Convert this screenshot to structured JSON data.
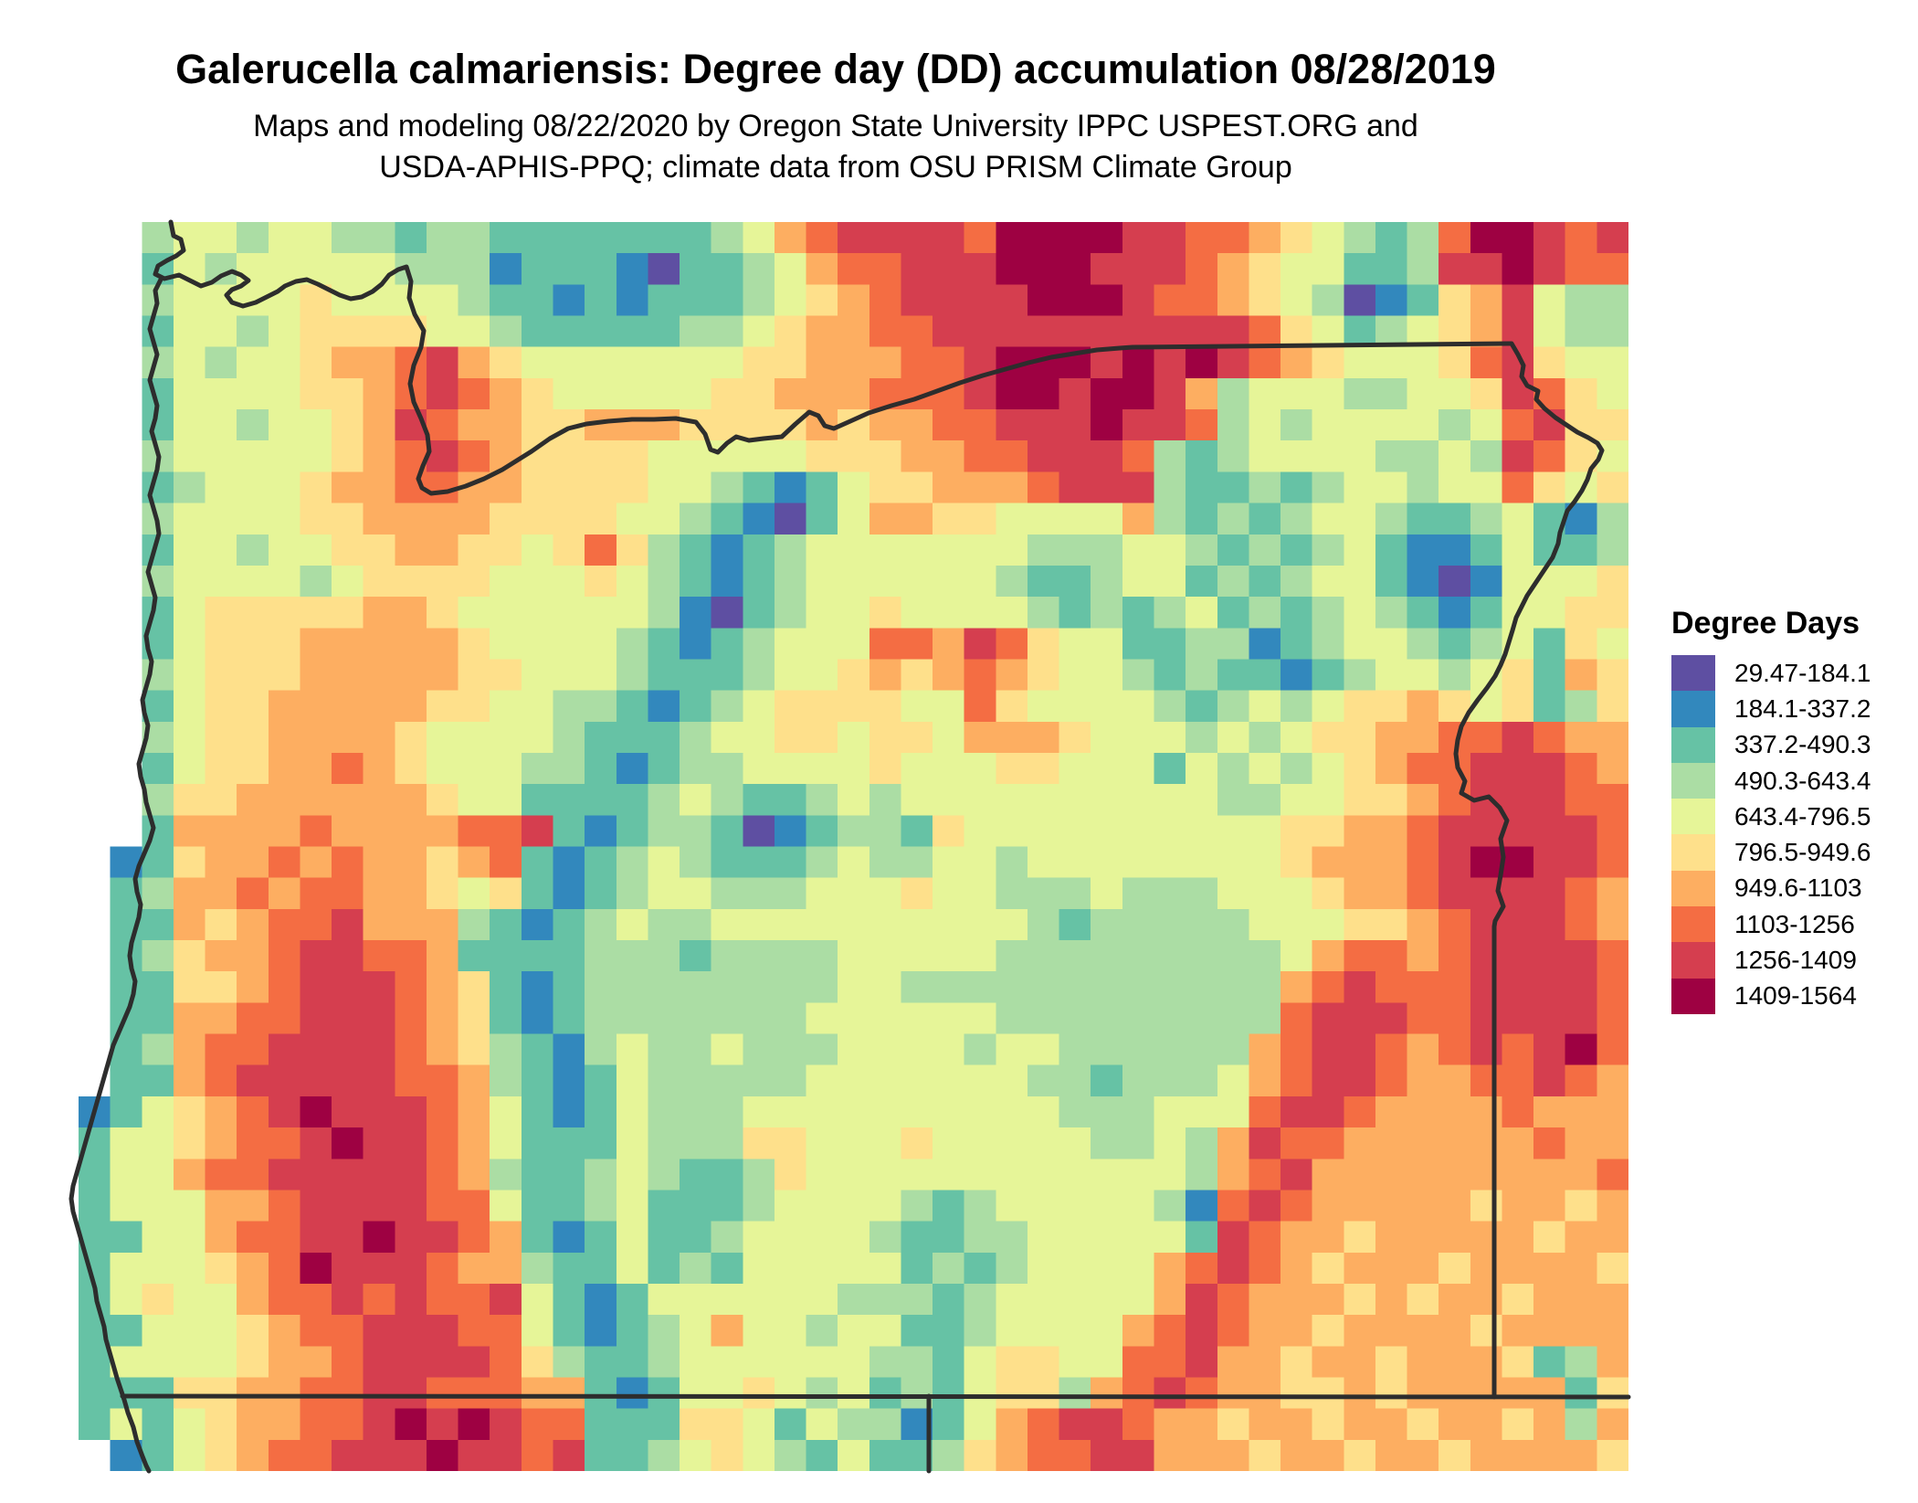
{
  "title": "Galerucella calmariensis: Degree day (DD) accumulation 08/28/2019",
  "subtitle": {
    "line1": "Maps and modeling 08/22/2020 by Oregon State University IPPC USPEST.ORG and",
    "line2": "USDA-APHIS-PPQ; climate data from OSU PRISM Climate Group"
  },
  "legend": {
    "title": "Degree Days",
    "entries": [
      {
        "label": "29.47-184.1",
        "color": "#5e4fa2"
      },
      {
        "label": "184.1-337.2",
        "color": "#3288bd"
      },
      {
        "label": "337.2-490.3",
        "color": "#66c2a5"
      },
      {
        "label": "490.3-643.4",
        "color": "#abdda4"
      },
      {
        "label": "643.4-796.5",
        "color": "#e6f598"
      },
      {
        "label": "796.5-949.6",
        "color": "#fee08b"
      },
      {
        "label": "949.6-1103",
        "color": "#fdae61"
      },
      {
        "label": "1103-1256",
        "color": "#f46d43"
      },
      {
        "label": "1256-1409",
        "color": "#d53e4f"
      },
      {
        "label": "1409-1564",
        "color": "#9e0142"
      }
    ]
  },
  "map": {
    "cols": 49,
    "rows": 40,
    "palette": {
      "0": "#5e4fa2",
      "1": "#3288bd",
      "2": "#66c2a5",
      "3": "#abdda4",
      "4": "#e6f598",
      "5": "#fee08b",
      "6": "#fdae61",
      "7": "#f46d43",
      "8": "#d53e4f",
      "9": "#9e0142"
    },
    "grid": [
      "..34434433233222222234678888799998877654323799878",
      "..24344444333122210223467788899988876544223889877",
      "..34444544443221212223456788889998776543012568433",
      "..24434555544322222334566778888888888754234568433",
      "..34344566786544444445566677899989898765444578544",
      "..24444556787654444455666777899899863444334458754",
      "..24434456876655666555565667788898873434444347855",
      "..34444456787655554444455566778887323444433438754",
      "..23444566776655554432124556667888322323443447545",
      "..34444556666555544321024665544446323234432234213",
      "..24434455665545753212344444443334432323421124223",
      "..34444345555444543212344444432234423234421014445",
      "..24555556654444443102344544443232342323432124455",
      "..24555666665444432123444776875442233123443234254",
      "..34555666665544432223445656765443232212344345265",
      "..24556666655443321234555544754444323434556545235",
      "..34556666544443222344554554666544434345566778766",
      "..24556676544433212334444544455444243434567788876",
      "..35566666654422223432234344444444443344556788877",
      "..26666766667782123320123325444444444455667888887",
      ".125667676656721234322234334434444444456667899887",
      ".236676776654521234433344454433343334445667888876",
      ".226567786663212343344444444443233333444556788876",
      ".235667887762222333233334444433333333346776788887",
      ".225567888765212333333334433333333333367877788887",
      ".226677888765212333333344444433333333378887788887",
      ".236778888765321343343334444344333333678876787897",
      ".226788888776321243333344444443323334678876677876",
      "1245678988876421243334444444444333444788766667666",
      "2445677898876422243335544454444433436877666666766",
      "2446778888876322343223544444444444436786666666667",
      "2444667888877422342223444432344444317876666656656",
      "2244677889887621242234444322334444428766566666566",
      "2444567988876632242324444423234444678765666566665",
      "2454467787877842124444443332344444687666565665666",
      "2244456778887742123464434422344446787665666656666",
      "2444456678888753223444444332455447786656656665236",
      "2225566778877766212445434232455367876655656666625",
      "2424566778989877222554243312467887665665665665636",
      ".124567788898878223454324223567788666566566566665"
    ]
  }
}
